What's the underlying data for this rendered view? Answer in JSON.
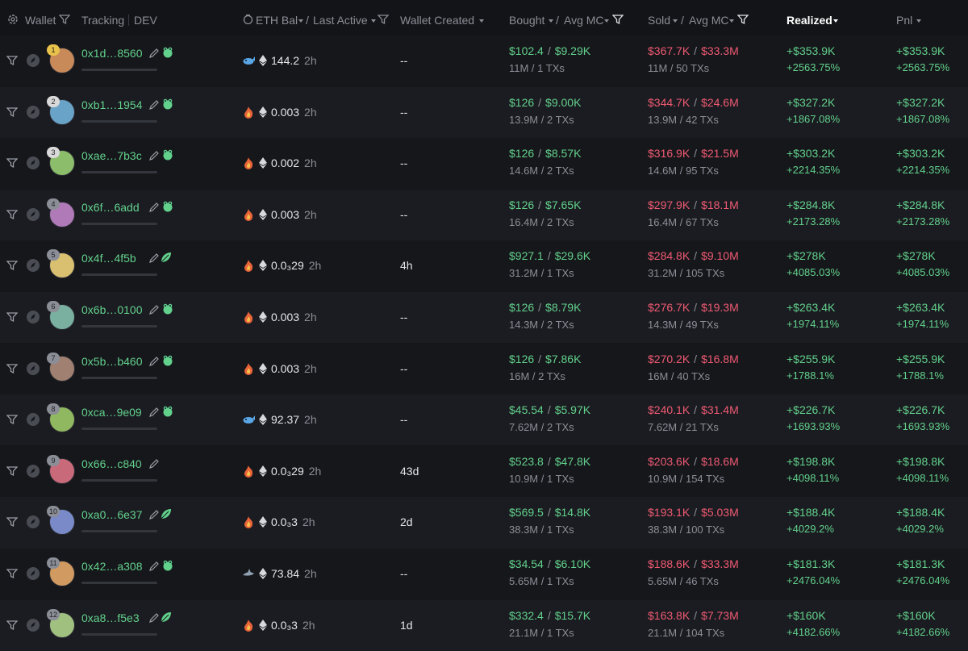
{
  "separator": "/",
  "header": {
    "wallet": "Wallet",
    "tracking": "Tracking",
    "dev": "DEV",
    "eth_bal": "ETH Bal",
    "last_active": "Last Active",
    "wallet_created": "Wallet Created",
    "bought": "Bought",
    "avg_mc": "Avg MC",
    "sold": "Sold",
    "avg_mc_sold": "Avg MC",
    "realized": "Realized",
    "pnl": "Pnl"
  },
  "rows": [
    {
      "rank": 1,
      "address": "0x1d…8560",
      "tag": "frog",
      "holder": "whale",
      "eth_bal": "144.2",
      "last_active": "2h",
      "wallet_created": "--",
      "bought": "$102.4",
      "bought_avg_mc": "$9.29K",
      "bought_detail": "11M / 1 TXs",
      "sold": "$367.7K",
      "sold_avg_mc": "$33.3M",
      "sold_detail": "11M / 50 TXs",
      "realized": "+$353.9K",
      "realized_pct": "+2563.75%",
      "pnl": "+$353.9K",
      "pnl_pct": "+2563.75%"
    },
    {
      "rank": 2,
      "address": "0xb1…1954",
      "tag": "frog",
      "holder": "fire",
      "eth_bal": "0.003",
      "last_active": "2h",
      "wallet_created": "--",
      "bought": "$126",
      "bought_avg_mc": "$9.00K",
      "bought_detail": "13.9M / 2 TXs",
      "sold": "$344.7K",
      "sold_avg_mc": "$24.6M",
      "sold_detail": "13.9M / 42 TXs",
      "realized": "+$327.2K",
      "realized_pct": "+1867.08%",
      "pnl": "+$327.2K",
      "pnl_pct": "+1867.08%"
    },
    {
      "rank": 3,
      "address": "0xae…7b3c",
      "tag": "frog",
      "holder": "fire",
      "eth_bal": "0.002",
      "last_active": "2h",
      "wallet_created": "--",
      "bought": "$126",
      "bought_avg_mc": "$8.57K",
      "bought_detail": "14.6M / 2 TXs",
      "sold": "$316.9K",
      "sold_avg_mc": "$21.5M",
      "sold_detail": "14.6M / 95 TXs",
      "realized": "+$303.2K",
      "realized_pct": "+2214.35%",
      "pnl": "+$303.2K",
      "pnl_pct": "+2214.35%"
    },
    {
      "rank": 4,
      "address": "0x6f…6add",
      "tag": "frog",
      "holder": "fire",
      "eth_bal": "0.003",
      "last_active": "2h",
      "wallet_created": "--",
      "bought": "$126",
      "bought_avg_mc": "$7.65K",
      "bought_detail": "16.4M / 2 TXs",
      "sold": "$297.9K",
      "sold_avg_mc": "$18.1M",
      "sold_detail": "16.4M / 67 TXs",
      "realized": "+$284.8K",
      "realized_pct": "+2173.28%",
      "pnl": "+$284.8K",
      "pnl_pct": "+2173.28%"
    },
    {
      "rank": 5,
      "address": "0x4f…4f5b",
      "tag": "leaf",
      "holder": "fire",
      "eth_bal": "0.0₃29",
      "last_active": "2h",
      "wallet_created": "4h",
      "bought": "$927.1",
      "bought_avg_mc": "$29.6K",
      "bought_detail": "31.2M / 1 TXs",
      "sold": "$284.8K",
      "sold_avg_mc": "$9.10M",
      "sold_detail": "31.2M / 105 TXs",
      "realized": "+$278K",
      "realized_pct": "+4085.03%",
      "pnl": "+$278K",
      "pnl_pct": "+4085.03%"
    },
    {
      "rank": 6,
      "address": "0x6b…0100",
      "tag": "frog",
      "holder": "fire",
      "eth_bal": "0.003",
      "last_active": "2h",
      "wallet_created": "--",
      "bought": "$126",
      "bought_avg_mc": "$8.79K",
      "bought_detail": "14.3M / 2 TXs",
      "sold": "$276.7K",
      "sold_avg_mc": "$19.3M",
      "sold_detail": "14.3M / 49 TXs",
      "realized": "+$263.4K",
      "realized_pct": "+1974.11%",
      "pnl": "+$263.4K",
      "pnl_pct": "+1974.11%"
    },
    {
      "rank": 7,
      "address": "0x5b…b460",
      "tag": "frog",
      "holder": "fire",
      "eth_bal": "0.003",
      "last_active": "2h",
      "wallet_created": "--",
      "bought": "$126",
      "bought_avg_mc": "$7.86K",
      "bought_detail": "16M / 2 TXs",
      "sold": "$270.2K",
      "sold_avg_mc": "$16.8M",
      "sold_detail": "16M / 40 TXs",
      "realized": "+$255.9K",
      "realized_pct": "+1788.1%",
      "pnl": "+$255.9K",
      "pnl_pct": "+1788.1%"
    },
    {
      "rank": 8,
      "address": "0xca…9e09",
      "tag": "frog",
      "holder": "whale",
      "eth_bal": "92.37",
      "last_active": "2h",
      "wallet_created": "--",
      "bought": "$45.54",
      "bought_avg_mc": "$5.97K",
      "bought_detail": "7.62M / 2 TXs",
      "sold": "$240.1K",
      "sold_avg_mc": "$31.4M",
      "sold_detail": "7.62M / 21 TXs",
      "realized": "+$226.7K",
      "realized_pct": "+1693.93%",
      "pnl": "+$226.7K",
      "pnl_pct": "+1693.93%"
    },
    {
      "rank": 9,
      "address": "0x66…c840",
      "holder": "fire",
      "eth_bal": "0.0₃29",
      "last_active": "2h",
      "wallet_created": "43d",
      "bought": "$523.8",
      "bought_avg_mc": "$47.8K",
      "bought_detail": "10.9M / 1 TXs",
      "sold": "$203.6K",
      "sold_avg_mc": "$18.6M",
      "sold_detail": "10.9M / 154 TXs",
      "realized": "+$198.8K",
      "realized_pct": "+4098.11%",
      "pnl": "+$198.8K",
      "pnl_pct": "+4098.11%"
    },
    {
      "rank": 10,
      "address": "0xa0…6e37",
      "tag": "leaf",
      "holder": "fire",
      "eth_bal": "0.0₃3",
      "last_active": "2h",
      "wallet_created": "2d",
      "bought": "$569.5",
      "bought_avg_mc": "$14.8K",
      "bought_detail": "38.3M / 1 TXs",
      "sold": "$193.1K",
      "sold_avg_mc": "$5.03M",
      "sold_detail": "38.3M / 100 TXs",
      "realized": "+$188.4K",
      "realized_pct": "+4029.2%",
      "pnl": "+$188.4K",
      "pnl_pct": "+4029.2%"
    },
    {
      "rank": 11,
      "address": "0x42…a308",
      "tag": "frog",
      "holder": "shark",
      "eth_bal": "73.84",
      "last_active": "2h",
      "wallet_created": "--",
      "bought": "$34.54",
      "bought_avg_mc": "$6.10K",
      "bought_detail": "5.65M / 1 TXs",
      "sold": "$188.6K",
      "sold_avg_mc": "$33.3M",
      "sold_detail": "5.65M / 46 TXs",
      "realized": "+$181.3K",
      "realized_pct": "+2476.04%",
      "pnl": "+$181.3K",
      "pnl_pct": "+2476.04%"
    },
    {
      "rank": 12,
      "address": "0xa8…f5e3",
      "tag": "leaf",
      "holder": "fire",
      "eth_bal": "0.0₃3",
      "last_active": "2h",
      "wallet_created": "1d",
      "bought": "$332.4",
      "bought_avg_mc": "$15.7K",
      "bought_detail": "21.1M / 1 TXs",
      "sold": "$163.8K",
      "sold_avg_mc": "$7.73M",
      "sold_detail": "21.1M / 104 TXs",
      "realized": "+$160K",
      "realized_pct": "+4182.66%",
      "pnl": "+$160K",
      "pnl_pct": "+4182.66%"
    }
  ]
}
